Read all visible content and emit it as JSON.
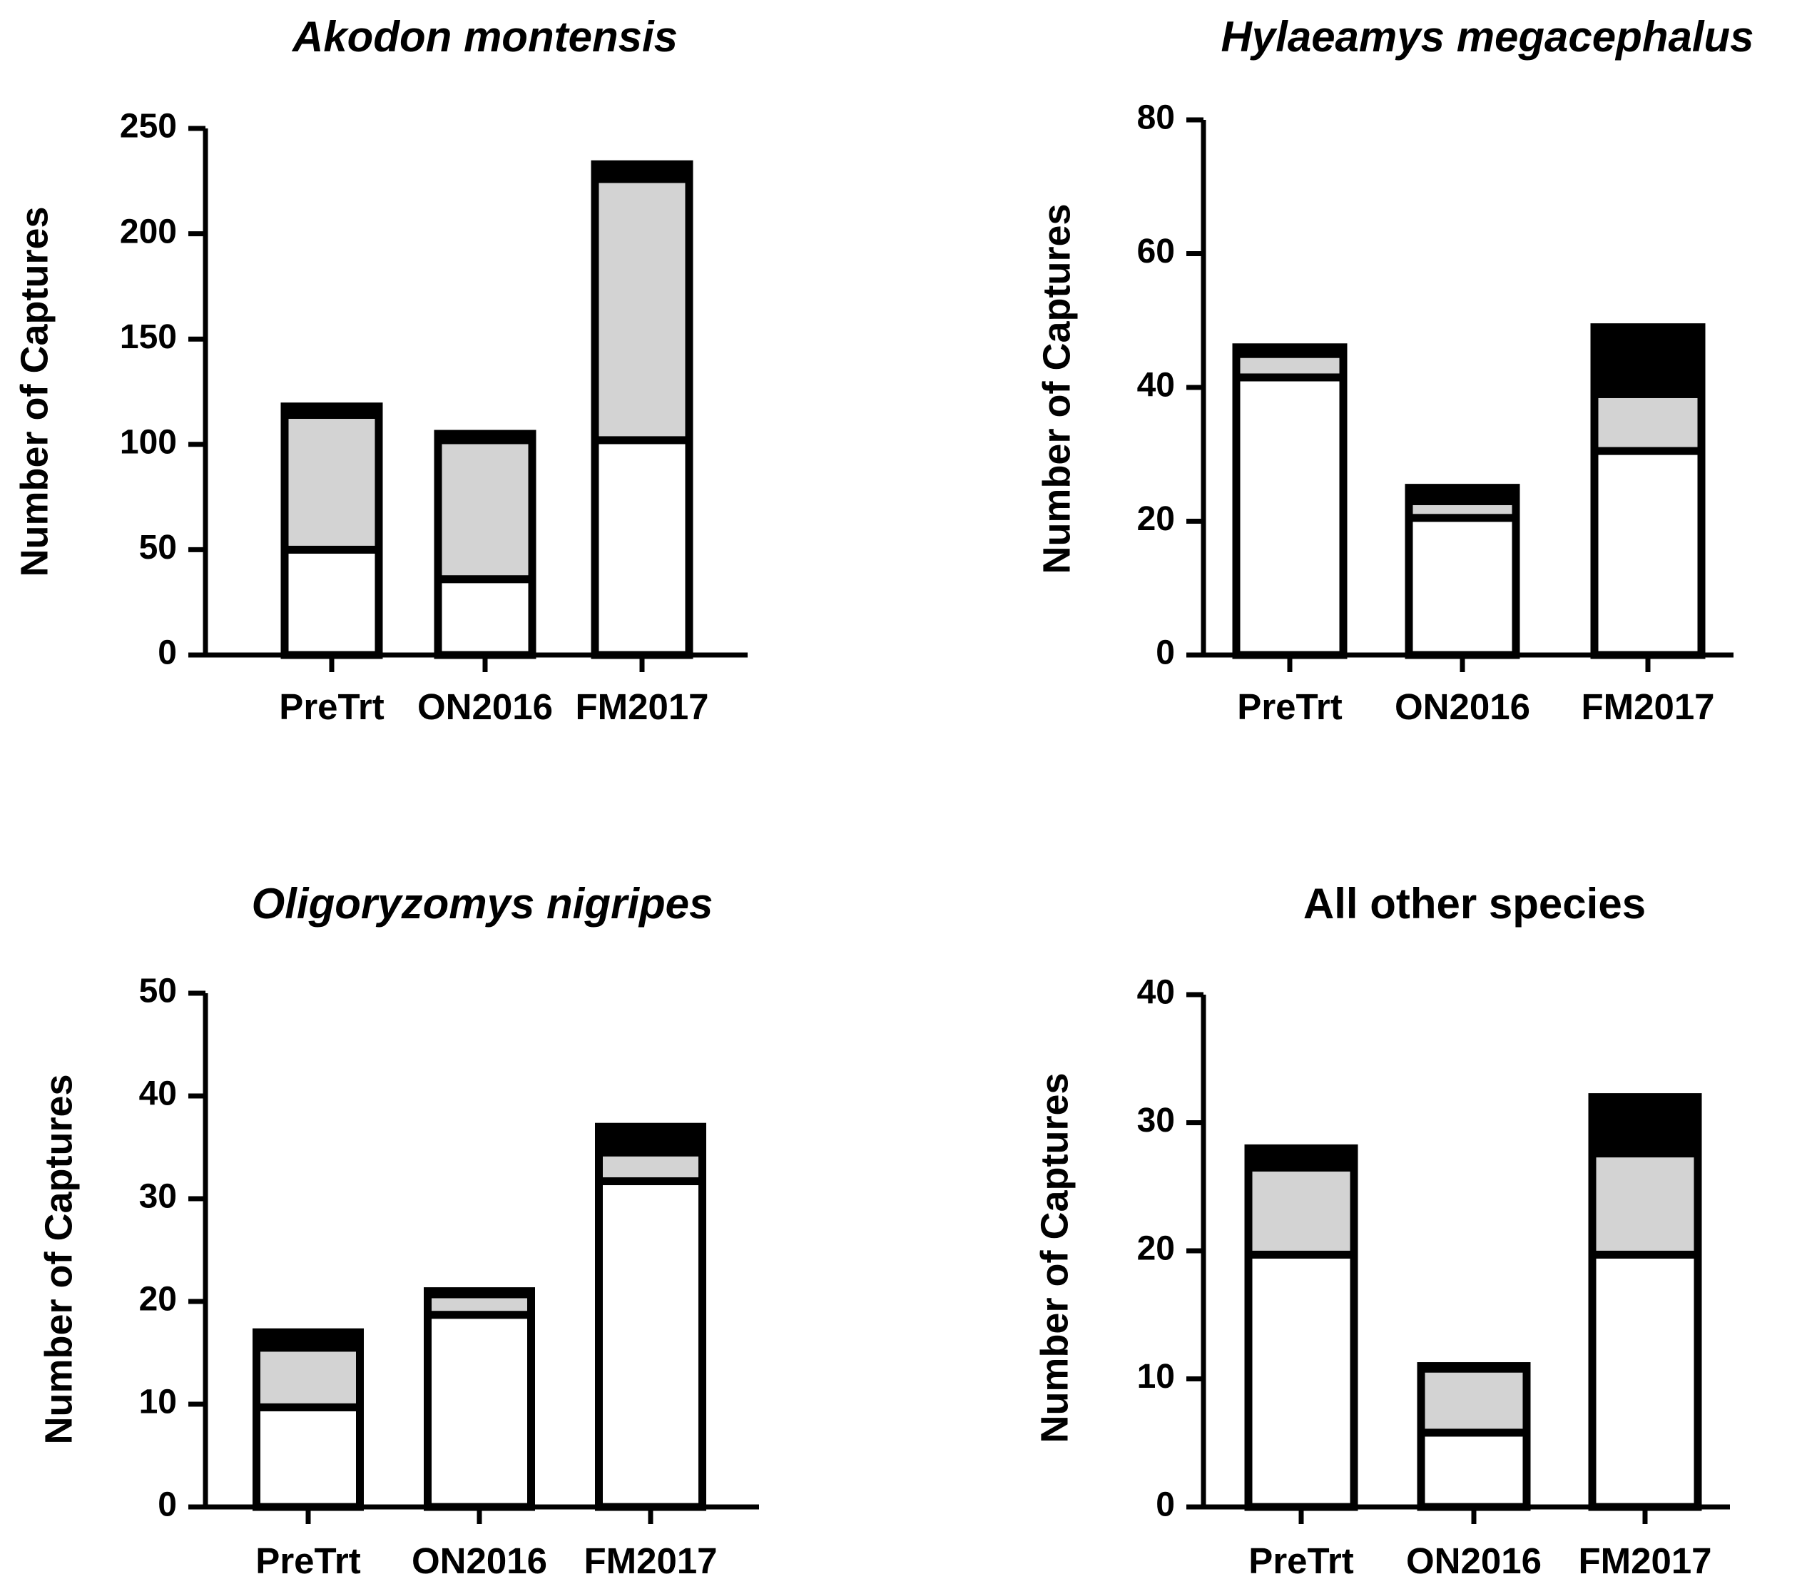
{
  "chart_data": [
    {
      "type": "bar",
      "stacked": true,
      "title": "Akodon montensis",
      "title_italic": true,
      "ylabel": "Number of Captures",
      "xlabel": "",
      "categories": [
        "PreTrt",
        "ON2016",
        "FM2017"
      ],
      "ylim": [
        0,
        250
      ],
      "yticks": [
        0,
        50,
        100,
        150,
        200,
        250
      ],
      "series": [
        {
          "name": "white",
          "color": "#ffffff",
          "values": [
            50,
            36,
            102
          ]
        },
        {
          "name": "gray",
          "color": "#d3d3d3",
          "values": [
            64,
            66,
            124
          ]
        },
        {
          "name": "black",
          "color": "#000000",
          "values": [
            4,
            3,
            7
          ]
        }
      ]
    },
    {
      "type": "bar",
      "stacked": true,
      "title": "Hylaeamys megacephalus",
      "title_italic": true,
      "ylabel": "Number of Captures",
      "xlabel": "",
      "categories": [
        "PreTrt",
        "ON2016",
        "FM2017"
      ],
      "ylim": [
        0,
        80
      ],
      "yticks": [
        0,
        20,
        40,
        60,
        80
      ],
      "series": [
        {
          "name": "white",
          "color": "#ffffff",
          "values": [
            41.5,
            20.5,
            30.5
          ]
        },
        {
          "name": "gray",
          "color": "#d3d3d3",
          "values": [
            3.5,
            2.5,
            8.5
          ]
        },
        {
          "name": "black",
          "color": "#000000",
          "values": [
            1,
            2,
            10
          ]
        }
      ]
    },
    {
      "type": "bar",
      "stacked": true,
      "title": "Oligoryzomys nigripes",
      "title_italic": true,
      "ylabel": "Number of Captures",
      "xlabel": "",
      "categories": [
        "PreTrt",
        "ON2016",
        "FM2017"
      ],
      "ylim": [
        0,
        50
      ],
      "yticks": [
        0,
        10,
        20,
        30,
        40,
        50
      ],
      "series": [
        {
          "name": "white",
          "color": "#ffffff",
          "values": [
            9.7,
            18.7,
            31.7
          ]
        },
        {
          "name": "gray",
          "color": "#d3d3d3",
          "values": [
            5.8,
            2,
            2.8
          ]
        },
        {
          "name": "black",
          "color": "#000000",
          "values": [
            1.5,
            0.3,
            2.5
          ]
        }
      ]
    },
    {
      "type": "bar",
      "stacked": true,
      "title": "All other species",
      "title_italic": false,
      "ylabel": "Number of Captures",
      "xlabel": "",
      "categories": [
        "PreTrt",
        "ON2016",
        "FM2017"
      ],
      "ylim": [
        0,
        40
      ],
      "yticks": [
        0,
        10,
        20,
        30,
        40
      ],
      "series": [
        {
          "name": "white",
          "color": "#ffffff",
          "values": [
            19.7,
            5.8,
            19.7
          ]
        },
        {
          "name": "gray",
          "color": "#d3d3d3",
          "values": [
            6.8,
            5,
            7.9
          ]
        },
        {
          "name": "black",
          "color": "#000000",
          "values": [
            1.5,
            0.2,
            4.4
          ]
        }
      ]
    }
  ]
}
